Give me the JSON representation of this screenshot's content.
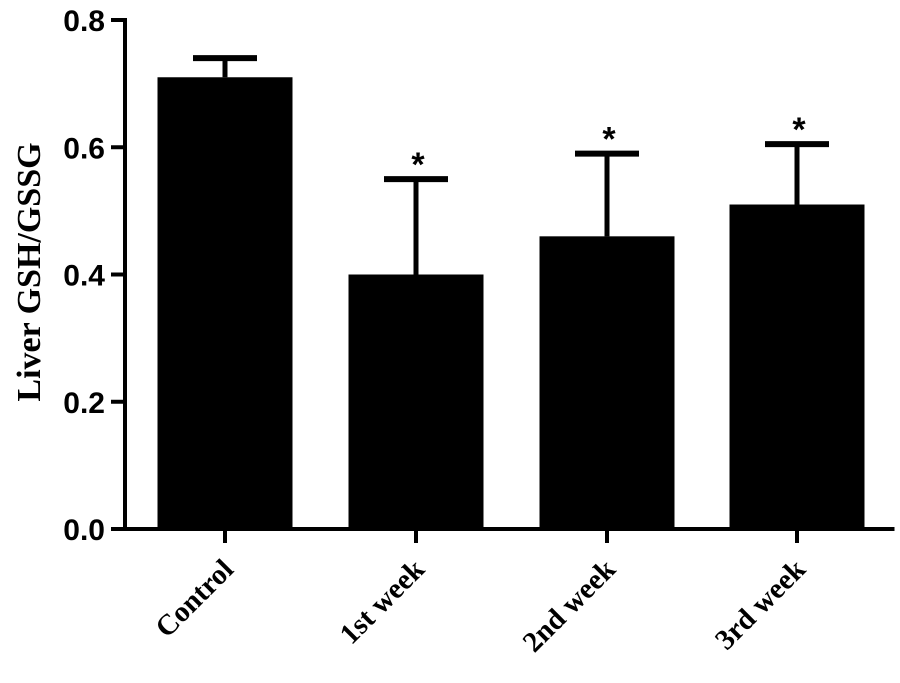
{
  "chart_data": {
    "type": "bar",
    "title": "",
    "xlabel": "",
    "ylabel": "Liver GSH/GSSG",
    "ylim": [
      0,
      0.8
    ],
    "yticks": [
      "0.0",
      "0.2",
      "0.4",
      "0.6",
      "0.8"
    ],
    "categories": [
      "Control",
      "1st week",
      "2nd week",
      "3rd week"
    ],
    "values": [
      0.71,
      0.4,
      0.46,
      0.51
    ],
    "errors": [
      0.03,
      0.15,
      0.13,
      0.095
    ],
    "annotations": [
      "",
      "*",
      "*",
      "*"
    ],
    "grid": false,
    "bar_color": "#000000"
  }
}
